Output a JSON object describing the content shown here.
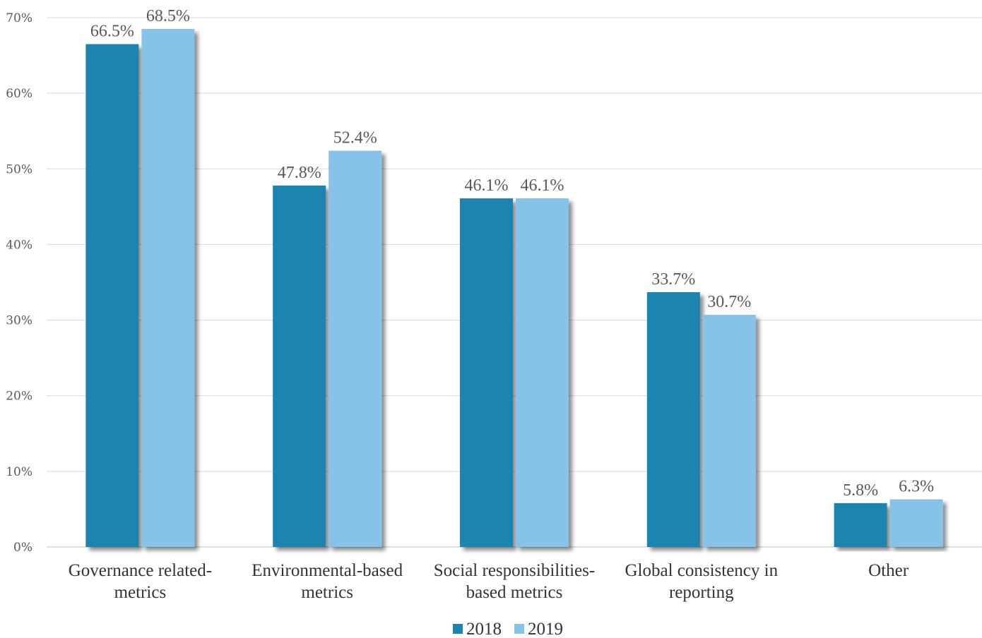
{
  "chart_data": {
    "type": "bar",
    "categories": [
      [
        "Governance related-",
        "metrics"
      ],
      [
        "Environmental-based",
        "metrics"
      ],
      [
        "Social responsibilities-",
        "based metrics"
      ],
      [
        "Global consistency in",
        "reporting"
      ],
      [
        "Other"
      ]
    ],
    "series": [
      {
        "name": "2018",
        "color": "#1a84b0",
        "values": [
          66.5,
          47.8,
          46.1,
          33.7,
          5.8
        ],
        "labels": [
          "66.5%",
          "47.8%",
          "46.1%",
          "33.7%",
          "5.8%"
        ]
      },
      {
        "name": "2019",
        "color": "#87c3e9",
        "values": [
          68.5,
          52.4,
          46.1,
          30.7,
          6.3
        ],
        "labels": [
          "68.5%",
          "52.4%",
          "46.1%",
          "30.7%",
          "6.3%"
        ]
      }
    ],
    "ylim": [
      0,
      70
    ],
    "yticks": [
      0,
      10,
      20,
      30,
      40,
      50,
      60,
      70
    ],
    "ytick_labels": [
      "0%",
      "10%",
      "20%",
      "30%",
      "40%",
      "50%",
      "60%",
      "70%"
    ],
    "title": "",
    "xlabel": "",
    "ylabel": "",
    "grid": true,
    "legend": "bottom-center"
  }
}
